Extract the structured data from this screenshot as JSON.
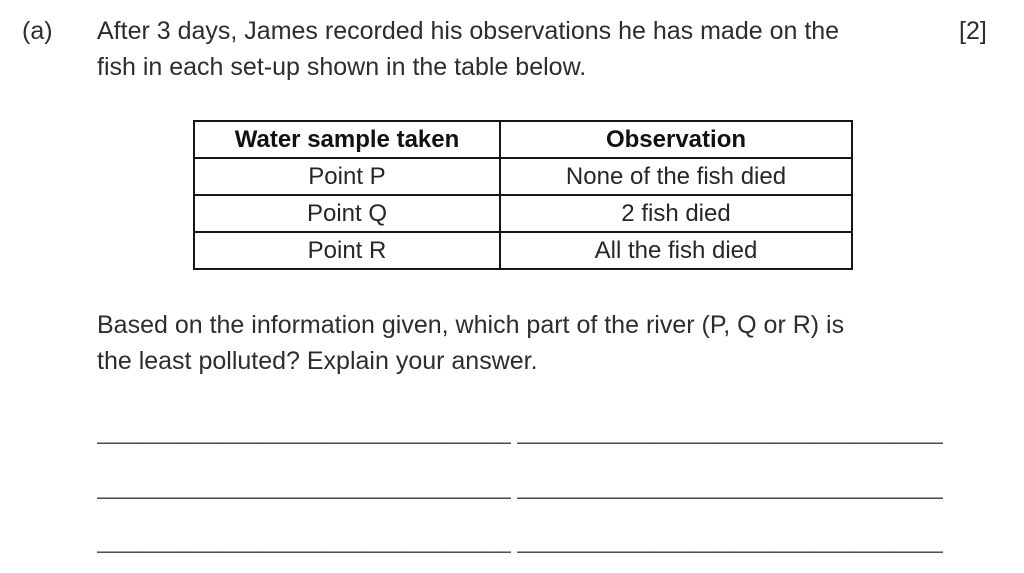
{
  "question": {
    "part_label": "(a)",
    "marks": "[2]",
    "intro_lines": [
      "After 3 days, James recorded his observations he has made on the",
      "fish in each set-up shown in the table below."
    ],
    "prompt_lines": [
      "Based on the information given, which part of the river (P, Q or R) is",
      "the least polluted? Explain your answer."
    ]
  },
  "table": {
    "headers": [
      "Water sample taken",
      "Observation"
    ],
    "rows": [
      [
        "Point P",
        "None of the fish died"
      ],
      [
        "Point Q",
        "2 fish died"
      ],
      [
        "Point R",
        "All the fish died"
      ]
    ]
  },
  "answer_lines": [
    "_______________________________ _________________________________",
    "_______________________________ _________________________________",
    "_______________________________ _________________________________"
  ],
  "colors": {
    "text": "#2d2d2d",
    "table_border": "#161616",
    "answer_line": "#4f4f4f",
    "background": "#ffffff"
  }
}
